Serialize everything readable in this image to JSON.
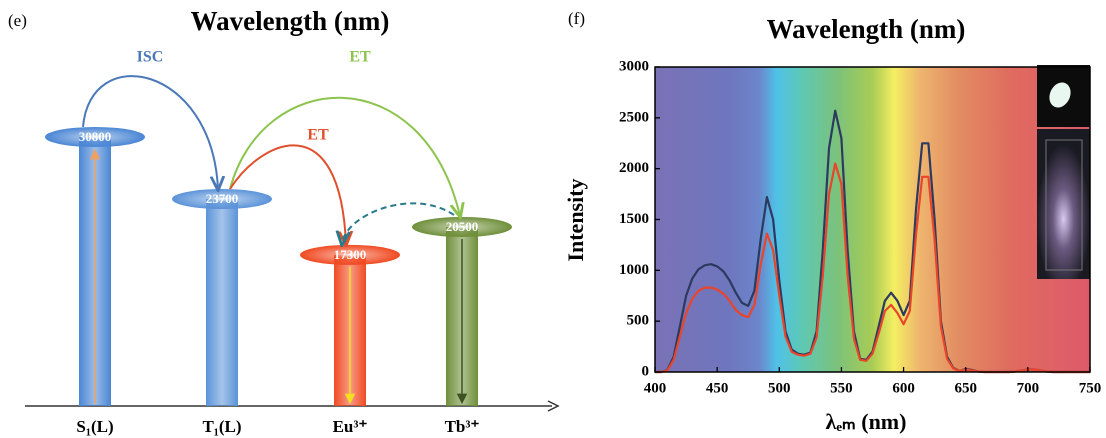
{
  "chart_data": [
    {
      "type": "energy-level",
      "panel": "(e)",
      "title": "Wavelength (nm)",
      "categories": [
        "S₁(L)",
        "T₁(L)",
        "Eu³⁺",
        "Tb³⁺"
      ],
      "values": [
        30800,
        23700,
        17300,
        20500
      ],
      "colors": [
        "#4a86d4",
        "#5b93d8",
        "#f04a22",
        "#6f8f3a"
      ],
      "annotations": [
        "ISC",
        "ET",
        "ET"
      ]
    },
    {
      "type": "line",
      "panel": "(f)",
      "title": "Wavelength (nm)",
      "x_label": "λₑₘ (nm)",
      "y_label": "Intensity",
      "x": [
        400,
        405,
        410,
        415,
        420,
        425,
        430,
        435,
        440,
        445,
        450,
        455,
        460,
        465,
        470,
        475,
        480,
        485,
        490,
        495,
        500,
        505,
        510,
        515,
        520,
        525,
        530,
        535,
        540,
        545,
        550,
        555,
        560,
        565,
        570,
        575,
        580,
        585,
        590,
        595,
        600,
        605,
        610,
        615,
        620,
        625,
        630,
        635,
        640,
        645,
        650,
        655,
        660,
        665,
        670,
        675,
        680,
        685,
        690,
        695,
        700,
        705,
        710,
        715,
        720,
        725,
        730,
        735,
        740,
        745,
        750
      ],
      "series": [
        {
          "color": "#2b3a5e",
          "values": [
            0,
            0,
            20,
            150,
            450,
            750,
            920,
            1010,
            1050,
            1060,
            1040,
            990,
            900,
            780,
            680,
            650,
            800,
            1300,
            1720,
            1500,
            900,
            400,
            220,
            180,
            170,
            190,
            400,
            1200,
            2200,
            2570,
            2300,
            1200,
            400,
            130,
            120,
            200,
            450,
            700,
            780,
            700,
            560,
            700,
            1600,
            2250,
            2250,
            1500,
            500,
            150,
            40,
            10,
            30,
            20,
            5,
            0,
            0,
            0,
            0,
            0,
            5,
            15,
            25,
            25,
            15,
            5,
            0,
            0,
            0,
            0,
            0,
            0,
            0
          ]
        },
        {
          "color": "#e8452a",
          "values": [
            0,
            0,
            15,
            120,
            350,
            580,
            720,
            800,
            830,
            830,
            810,
            770,
            700,
            610,
            560,
            540,
            660,
            1050,
            1360,
            1200,
            750,
            350,
            200,
            170,
            160,
            180,
            340,
            950,
            1750,
            2050,
            1850,
            950,
            330,
            120,
            110,
            180,
            380,
            600,
            660,
            580,
            470,
            600,
            1350,
            1920,
            1920,
            1300,
            450,
            130,
            35,
            10,
            25,
            15,
            5,
            0,
            0,
            0,
            0,
            0,
            5,
            15,
            25,
            25,
            15,
            5,
            0,
            0,
            0,
            0,
            0,
            0,
            0
          ]
        }
      ],
      "xlim": [
        400,
        750
      ],
      "ylim": [
        0,
        3000
      ],
      "xticks": [
        400,
        450,
        500,
        550,
        600,
        650,
        700,
        750
      ],
      "yticks": [
        0,
        500,
        1000,
        1500,
        2000,
        2500,
        3000
      ]
    }
  ]
}
